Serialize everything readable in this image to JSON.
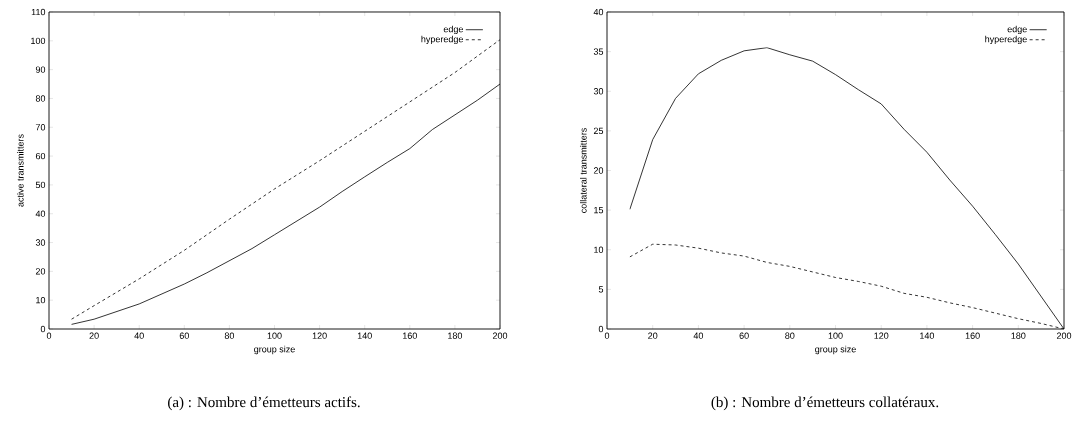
{
  "chart_data": [
    {
      "type": "line",
      "xlabel": "group size",
      "ylabel": "active transmitters",
      "xlim": [
        0,
        200
      ],
      "ylim": [
        0,
        110
      ],
      "xticks": [
        0,
        20,
        40,
        60,
        80,
        100,
        120,
        140,
        160,
        180,
        200
      ],
      "yticks": [
        0,
        10,
        20,
        30,
        40,
        50,
        60,
        70,
        80,
        90,
        100,
        110
      ],
      "grid": false,
      "legend": "top right",
      "marker": "none",
      "annotations": [
        "(a) : Nombre d’émetteurs actifs."
      ],
      "series": [
        {
          "name": "edge",
          "color": "#000000",
          "line_style": "solid",
          "x": [
            10,
            20,
            40,
            60,
            70,
            90,
            100,
            120,
            130,
            140,
            150,
            160,
            170,
            190,
            200
          ],
          "values": [
            1.6,
            3.4,
            8.7,
            15.6,
            19.5,
            27.9,
            32.7,
            42.3,
            47.7,
            52.8,
            57.8,
            62.6,
            69.2,
            79.4,
            85
          ]
        },
        {
          "name": "hyperedge",
          "color": "#000000",
          "line_style": "dashed",
          "x": [
            10,
            20,
            40,
            60,
            80,
            100,
            120,
            140,
            160,
            180,
            200
          ],
          "values": [
            3.4,
            8.1,
            17.4,
            27.3,
            38.1,
            48.6,
            58.4,
            68.6,
            78.8,
            89,
            100.4
          ]
        }
      ]
    },
    {
      "type": "line",
      "xlabel": "group size",
      "ylabel": "collateral transmitters",
      "xlim": [
        0,
        200
      ],
      "ylim": [
        0,
        40
      ],
      "xticks": [
        0,
        20,
        40,
        60,
        80,
        100,
        120,
        140,
        160,
        180,
        200
      ],
      "yticks": [
        0,
        5,
        10,
        15,
        20,
        25,
        30,
        35,
        40
      ],
      "grid": false,
      "legend": "top right",
      "marker": "none",
      "annotations": [
        "(b) : Nombre d’émetteurs collatéraux."
      ],
      "series": [
        {
          "name": "edge",
          "color": "#000000",
          "line_style": "solid",
          "x": [
            10,
            20,
            30,
            40,
            50,
            60,
            70,
            80,
            90,
            100,
            110,
            120,
            130,
            140,
            150,
            160,
            170,
            180,
            200
          ],
          "values": [
            15.1,
            23.9,
            29.1,
            32.2,
            33.9,
            35.1,
            35.5,
            34.6,
            33.8,
            32.1,
            30.2,
            28.4,
            25.2,
            22.3,
            18.8,
            15.5,
            11.9,
            8.2,
            0
          ]
        },
        {
          "name": "hyperedge",
          "color": "#000000",
          "line_style": "dashed",
          "x": [
            10,
            20,
            30,
            40,
            50,
            60,
            70,
            80,
            90,
            100,
            110,
            120,
            130,
            140,
            150,
            160,
            170,
            180,
            190,
            200
          ],
          "values": [
            9.1,
            10.7,
            10.6,
            10.2,
            9.6,
            9.2,
            8.4,
            7.9,
            7.2,
            6.5,
            6.0,
            5.4,
            4.5,
            4.0,
            3.3,
            2.7,
            2.0,
            1.3,
            0.7,
            0
          ]
        }
      ]
    }
  ]
}
